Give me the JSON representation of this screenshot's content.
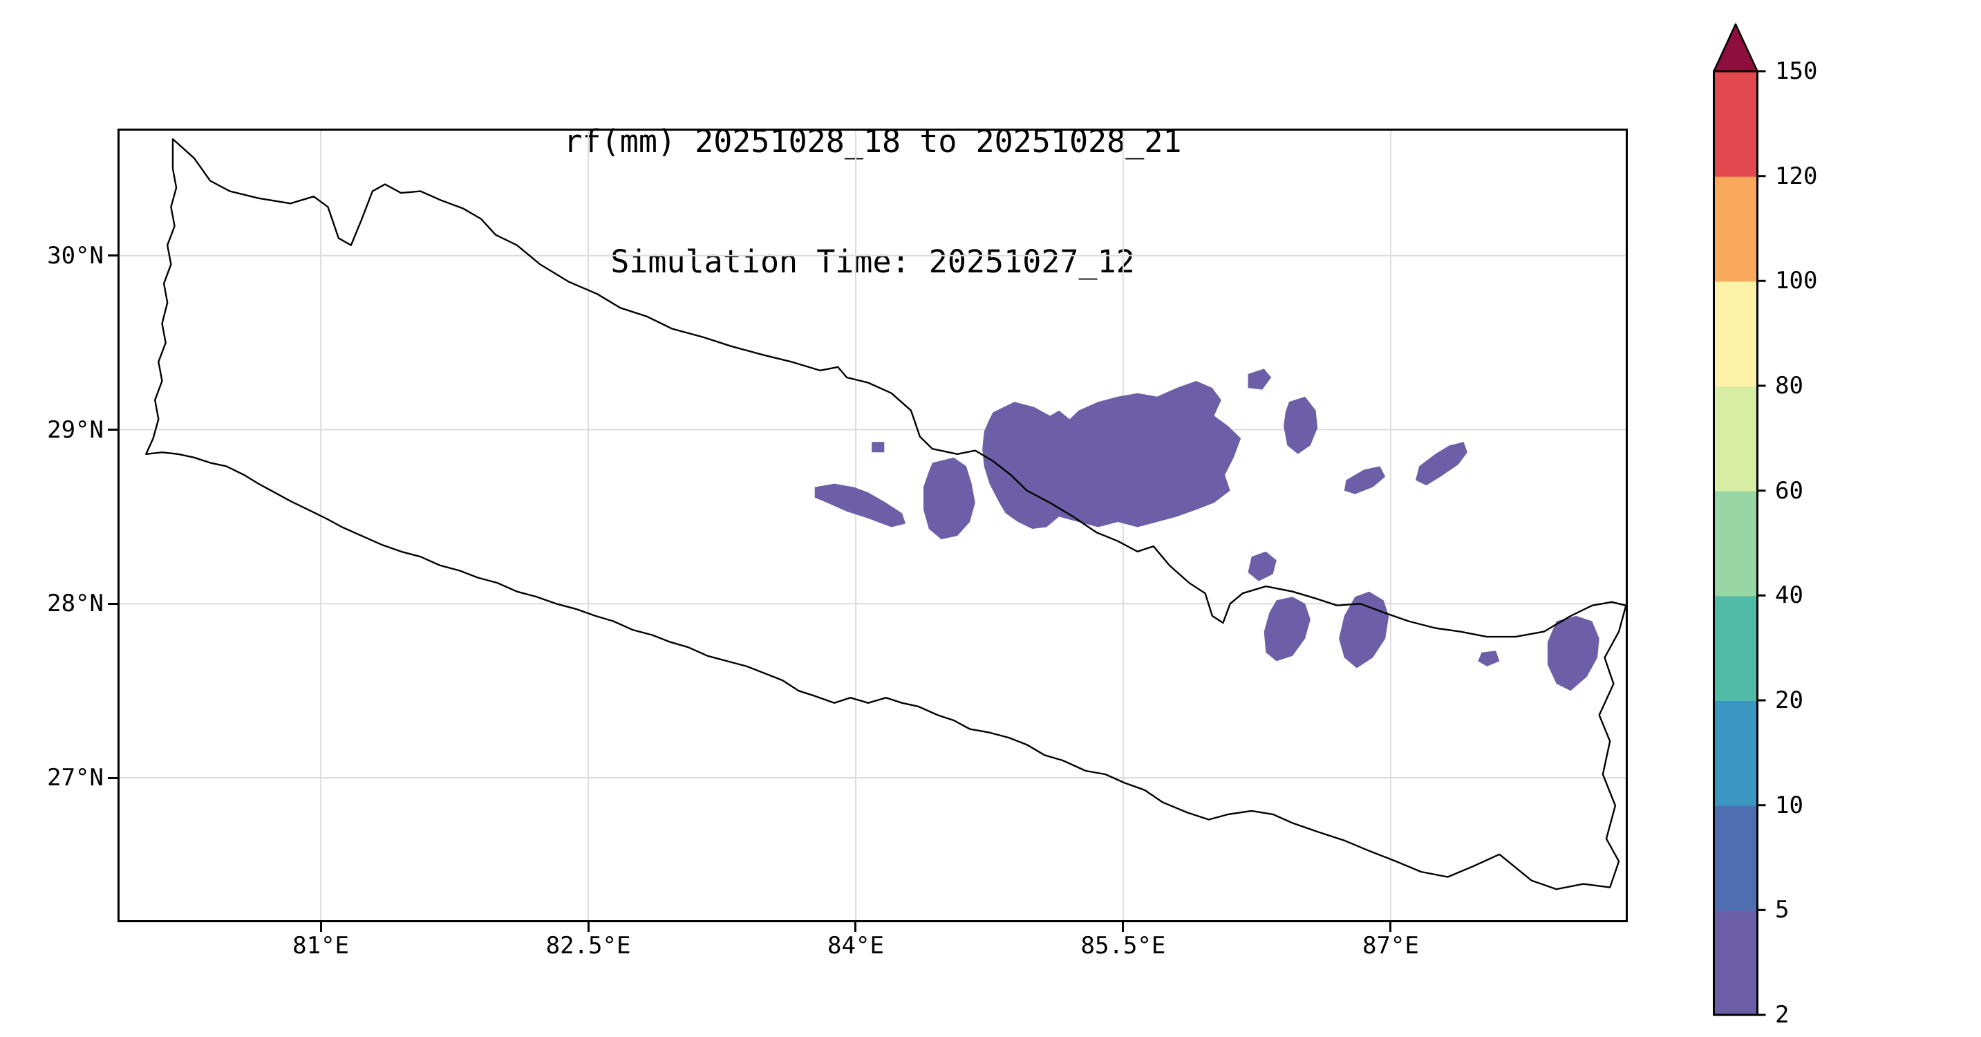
{
  "chart_data": {
    "type": "heatmap",
    "subtype": "filled-contour-precipitation-map",
    "title": "rf(mm) 20251028_18 to 20251028_21",
    "subtitle": "Simulation Time: 20251027_12",
    "region": "Nepal",
    "grid": true,
    "grid_color": "#dcdcdc",
    "x_axis": {
      "range": [
        79.86,
        88.33
      ],
      "ticks": [
        {
          "value": 81.0,
          "label": "81°E"
        },
        {
          "value": 82.5,
          "label": "82.5°E"
        },
        {
          "value": 84.0,
          "label": "84°E"
        },
        {
          "value": 85.5,
          "label": "85.5°E"
        },
        {
          "value": 87.0,
          "label": "87°E"
        }
      ]
    },
    "y_axis": {
      "range": [
        26.17,
        30.73
      ],
      "ticks": [
        {
          "value": 27.0,
          "label": "27°N"
        },
        {
          "value": 28.0,
          "label": "28°N"
        },
        {
          "value": 29.0,
          "label": "29°N"
        },
        {
          "value": 30.0,
          "label": "30°N"
        }
      ]
    },
    "colorbar": {
      "levels": [
        2,
        5,
        10,
        20,
        40,
        60,
        80,
        100,
        120,
        150
      ],
      "tick_labels": [
        "2",
        "5",
        "10",
        "20",
        "40",
        "60",
        "80",
        "100",
        "120",
        "150"
      ],
      "colors": [
        "#6c5fa7",
        "#4f6db1",
        "#3b97c2",
        "#52bba8",
        "#98d7a4",
        "#d7eda3",
        "#fdf0a7",
        "#f9a85c",
        "#e1494f"
      ],
      "extend_color": "#8e0f3e",
      "position": "right"
    },
    "map_outline": {
      "name": "nepal-border",
      "stroke": "#000000",
      "points": [
        [
          80.17,
          30.67
        ],
        [
          80.29,
          30.56
        ],
        [
          80.38,
          30.43
        ],
        [
          80.49,
          30.37
        ],
        [
          80.65,
          30.33
        ],
        [
          80.83,
          30.3
        ],
        [
          80.96,
          30.34
        ],
        [
          81.04,
          30.28
        ],
        [
          81.1,
          30.1
        ],
        [
          81.17,
          30.06
        ],
        [
          81.23,
          30.21
        ],
        [
          81.29,
          30.37
        ],
        [
          81.36,
          30.41
        ],
        [
          81.45,
          30.36
        ],
        [
          81.56,
          30.37
        ],
        [
          81.67,
          30.32
        ],
        [
          81.8,
          30.27
        ],
        [
          81.9,
          30.21
        ],
        [
          81.98,
          30.12
        ],
        [
          82.1,
          30.06
        ],
        [
          82.23,
          29.95
        ],
        [
          82.39,
          29.85
        ],
        [
          82.55,
          29.78
        ],
        [
          82.68,
          29.7
        ],
        [
          82.83,
          29.65
        ],
        [
          82.97,
          29.58
        ],
        [
          83.15,
          29.53
        ],
        [
          83.3,
          29.48
        ],
        [
          83.48,
          29.43
        ],
        [
          83.64,
          29.39
        ],
        [
          83.8,
          29.34
        ],
        [
          83.9,
          29.36
        ],
        [
          83.95,
          29.3
        ],
        [
          84.07,
          29.27
        ],
        [
          84.2,
          29.21
        ],
        [
          84.31,
          29.11
        ],
        [
          84.36,
          28.96
        ],
        [
          84.43,
          28.89
        ],
        [
          84.57,
          28.86
        ],
        [
          84.67,
          28.88
        ],
        [
          84.77,
          28.82
        ],
        [
          84.87,
          28.74
        ],
        [
          84.96,
          28.65
        ],
        [
          85.09,
          28.58
        ],
        [
          85.22,
          28.5
        ],
        [
          85.35,
          28.41
        ],
        [
          85.47,
          28.36
        ],
        [
          85.58,
          28.3
        ],
        [
          85.67,
          28.33
        ],
        [
          85.76,
          28.22
        ],
        [
          85.87,
          28.12
        ],
        [
          85.96,
          28.06
        ],
        [
          86.0,
          27.93
        ],
        [
          86.06,
          27.89
        ],
        [
          86.1,
          28.0
        ],
        [
          86.17,
          28.06
        ],
        [
          86.3,
          28.1
        ],
        [
          86.45,
          28.07
        ],
        [
          86.58,
          28.03
        ],
        [
          86.7,
          27.99
        ],
        [
          86.83,
          28.0
        ],
        [
          86.96,
          27.95
        ],
        [
          87.1,
          27.9
        ],
        [
          87.25,
          27.86
        ],
        [
          87.39,
          27.84
        ],
        [
          87.54,
          27.81
        ],
        [
          87.7,
          27.81
        ],
        [
          87.86,
          27.84
        ],
        [
          88.01,
          27.93
        ],
        [
          88.13,
          27.99
        ],
        [
          88.24,
          28.01
        ],
        [
          88.32,
          27.99
        ],
        [
          88.28,
          27.84
        ],
        [
          88.2,
          27.69
        ],
        [
          88.25,
          27.54
        ],
        [
          88.17,
          27.36
        ],
        [
          88.23,
          27.21
        ],
        [
          88.19,
          27.02
        ],
        [
          88.26,
          26.84
        ],
        [
          88.21,
          26.65
        ],
        [
          88.28,
          26.52
        ],
        [
          88.23,
          26.37
        ],
        [
          88.08,
          26.39
        ],
        [
          87.93,
          26.36
        ],
        [
          87.79,
          26.41
        ],
        [
          87.61,
          26.56
        ],
        [
          87.46,
          26.49
        ],
        [
          87.32,
          26.43
        ],
        [
          87.17,
          26.46
        ],
        [
          87.03,
          26.52
        ],
        [
          86.88,
          26.58
        ],
        [
          86.74,
          26.64
        ],
        [
          86.59,
          26.69
        ],
        [
          86.45,
          26.74
        ],
        [
          86.34,
          26.79
        ],
        [
          86.22,
          26.81
        ],
        [
          86.09,
          26.79
        ],
        [
          85.98,
          26.76
        ],
        [
          85.86,
          26.8
        ],
        [
          85.72,
          26.86
        ],
        [
          85.62,
          26.93
        ],
        [
          85.51,
          26.97
        ],
        [
          85.4,
          27.02
        ],
        [
          85.29,
          27.04
        ],
        [
          85.16,
          27.1
        ],
        [
          85.06,
          27.13
        ],
        [
          84.96,
          27.19
        ],
        [
          84.86,
          27.23
        ],
        [
          84.75,
          27.26
        ],
        [
          84.64,
          27.28
        ],
        [
          84.55,
          27.33
        ],
        [
          84.46,
          27.36
        ],
        [
          84.35,
          27.41
        ],
        [
          84.26,
          27.43
        ],
        [
          84.17,
          27.46
        ],
        [
          84.07,
          27.43
        ],
        [
          83.97,
          27.46
        ],
        [
          83.88,
          27.43
        ],
        [
          83.77,
          27.47
        ],
        [
          83.68,
          27.5
        ],
        [
          83.59,
          27.56
        ],
        [
          83.49,
          27.6
        ],
        [
          83.39,
          27.64
        ],
        [
          83.28,
          27.67
        ],
        [
          83.17,
          27.7
        ],
        [
          83.06,
          27.75
        ],
        [
          82.96,
          27.78
        ],
        [
          82.86,
          27.82
        ],
        [
          82.75,
          27.85
        ],
        [
          82.64,
          27.9
        ],
        [
          82.54,
          27.93
        ],
        [
          82.43,
          27.97
        ],
        [
          82.32,
          28.0
        ],
        [
          82.21,
          28.04
        ],
        [
          82.1,
          28.07
        ],
        [
          81.99,
          28.12
        ],
        [
          81.88,
          28.15
        ],
        [
          81.78,
          28.19
        ],
        [
          81.67,
          28.22
        ],
        [
          81.56,
          28.27
        ],
        [
          81.45,
          28.3
        ],
        [
          81.34,
          28.34
        ],
        [
          81.23,
          28.39
        ],
        [
          81.12,
          28.44
        ],
        [
          81.03,
          28.49
        ],
        [
          80.93,
          28.54
        ],
        [
          80.83,
          28.59
        ],
        [
          80.74,
          28.64
        ],
        [
          80.65,
          28.69
        ],
        [
          80.57,
          28.74
        ],
        [
          80.47,
          28.79
        ],
        [
          80.38,
          28.81
        ],
        [
          80.29,
          28.84
        ],
        [
          80.2,
          28.86
        ],
        [
          80.11,
          28.87
        ],
        [
          80.02,
          28.86
        ],
        [
          80.06,
          28.95
        ],
        [
          80.09,
          29.06
        ],
        [
          80.07,
          29.17
        ],
        [
          80.11,
          29.28
        ],
        [
          80.09,
          29.39
        ],
        [
          80.13,
          29.5
        ],
        [
          80.11,
          29.61
        ],
        [
          80.14,
          29.73
        ],
        [
          80.12,
          29.84
        ],
        [
          80.16,
          29.95
        ],
        [
          80.14,
          30.06
        ],
        [
          80.18,
          30.17
        ],
        [
          80.16,
          30.28
        ],
        [
          80.19,
          30.39
        ],
        [
          80.17,
          30.5
        ]
      ]
    },
    "rain_patches": {
      "value_range": "2-5 mm",
      "fill": "#6c5fa7",
      "polygons": [
        [
          [
            83.77,
            28.67
          ],
          [
            83.88,
            28.69
          ],
          [
            83.99,
            28.67
          ],
          [
            84.07,
            28.64
          ],
          [
            84.17,
            28.58
          ],
          [
            84.26,
            28.52
          ],
          [
            84.28,
            28.46
          ],
          [
            84.2,
            28.44
          ],
          [
            84.07,
            28.49
          ],
          [
            83.95,
            28.53
          ],
          [
            83.84,
            28.58
          ],
          [
            83.77,
            28.61
          ]
        ],
        [
          [
            84.09,
            28.93
          ],
          [
            84.16,
            28.93
          ],
          [
            84.16,
            28.87
          ],
          [
            84.09,
            28.87
          ]
        ],
        [
          [
            84.43,
            28.81
          ],
          [
            84.55,
            28.84
          ],
          [
            84.62,
            28.79
          ],
          [
            84.65,
            28.69
          ],
          [
            84.67,
            28.58
          ],
          [
            84.64,
            28.47
          ],
          [
            84.57,
            28.39
          ],
          [
            84.48,
            28.37
          ],
          [
            84.41,
            28.43
          ],
          [
            84.38,
            28.54
          ],
          [
            84.38,
            28.67
          ],
          [
            84.41,
            28.76
          ]
        ],
        [
          [
            84.77,
            29.1
          ],
          [
            84.89,
            29.16
          ],
          [
            85.0,
            29.13
          ],
          [
            85.09,
            29.08
          ],
          [
            85.14,
            29.11
          ],
          [
            85.2,
            29.06
          ],
          [
            85.25,
            29.11
          ],
          [
            85.36,
            29.16
          ],
          [
            85.47,
            29.19
          ],
          [
            85.58,
            29.21
          ],
          [
            85.69,
            29.19
          ],
          [
            85.8,
            29.24
          ],
          [
            85.91,
            29.28
          ],
          [
            86.0,
            29.24
          ],
          [
            86.05,
            29.17
          ],
          [
            86.01,
            29.08
          ],
          [
            86.09,
            29.02
          ],
          [
            86.16,
            28.95
          ],
          [
            86.12,
            28.84
          ],
          [
            86.07,
            28.74
          ],
          [
            86.1,
            28.65
          ],
          [
            86.01,
            28.58
          ],
          [
            85.91,
            28.54
          ],
          [
            85.8,
            28.5
          ],
          [
            85.69,
            28.47
          ],
          [
            85.58,
            28.44
          ],
          [
            85.47,
            28.47
          ],
          [
            85.36,
            28.44
          ],
          [
            85.25,
            28.47
          ],
          [
            85.14,
            28.5
          ],
          [
            85.07,
            28.44
          ],
          [
            84.99,
            28.43
          ],
          [
            84.91,
            28.47
          ],
          [
            84.84,
            28.52
          ],
          [
            84.8,
            28.59
          ],
          [
            84.75,
            28.69
          ],
          [
            84.72,
            28.79
          ],
          [
            84.71,
            28.89
          ],
          [
            84.72,
            28.99
          ],
          [
            84.75,
            29.06
          ]
        ],
        [
          [
            86.2,
            29.32
          ],
          [
            86.29,
            29.35
          ],
          [
            86.33,
            29.3
          ],
          [
            86.28,
            29.23
          ],
          [
            86.2,
            29.24
          ]
        ],
        [
          [
            86.43,
            29.16
          ],
          [
            86.52,
            29.19
          ],
          [
            86.58,
            29.11
          ],
          [
            86.59,
            29.01
          ],
          [
            86.55,
            28.91
          ],
          [
            86.48,
            28.86
          ],
          [
            86.42,
            28.91
          ],
          [
            86.4,
            29.02
          ],
          [
            86.41,
            29.1
          ]
        ],
        [
          [
            86.75,
            28.71
          ],
          [
            86.85,
            28.77
          ],
          [
            86.94,
            28.79
          ],
          [
            86.97,
            28.73
          ],
          [
            86.9,
            28.67
          ],
          [
            86.8,
            28.63
          ],
          [
            86.74,
            28.65
          ]
        ],
        [
          [
            87.16,
            28.79
          ],
          [
            87.25,
            28.86
          ],
          [
            87.33,
            28.91
          ],
          [
            87.41,
            28.93
          ],
          [
            87.43,
            28.87
          ],
          [
            87.38,
            28.8
          ],
          [
            87.28,
            28.73
          ],
          [
            87.2,
            28.68
          ],
          [
            87.14,
            28.71
          ]
        ],
        [
          [
            86.22,
            28.27
          ],
          [
            86.3,
            28.3
          ],
          [
            86.36,
            28.25
          ],
          [
            86.34,
            28.17
          ],
          [
            86.26,
            28.13
          ],
          [
            86.2,
            28.18
          ]
        ],
        [
          [
            86.36,
            28.02
          ],
          [
            86.45,
            28.04
          ],
          [
            86.52,
            28.0
          ],
          [
            86.55,
            27.91
          ],
          [
            86.52,
            27.8
          ],
          [
            86.45,
            27.7
          ],
          [
            86.36,
            27.67
          ],
          [
            86.3,
            27.72
          ],
          [
            86.29,
            27.84
          ],
          [
            86.32,
            27.95
          ]
        ],
        [
          [
            86.8,
            28.04
          ],
          [
            86.88,
            28.07
          ],
          [
            86.96,
            28.02
          ],
          [
            86.99,
            27.93
          ],
          [
            86.97,
            27.8
          ],
          [
            86.9,
            27.69
          ],
          [
            86.81,
            27.63
          ],
          [
            86.74,
            27.69
          ],
          [
            86.71,
            27.8
          ],
          [
            86.74,
            27.93
          ]
        ],
        [
          [
            87.51,
            27.72
          ],
          [
            87.59,
            27.73
          ],
          [
            87.61,
            27.67
          ],
          [
            87.54,
            27.64
          ],
          [
            87.49,
            27.67
          ]
        ],
        [
          [
            87.93,
            27.9
          ],
          [
            88.04,
            27.93
          ],
          [
            88.13,
            27.9
          ],
          [
            88.17,
            27.8
          ],
          [
            88.16,
            27.69
          ],
          [
            88.1,
            27.58
          ],
          [
            88.01,
            27.5
          ],
          [
            87.93,
            27.54
          ],
          [
            87.88,
            27.65
          ],
          [
            87.88,
            27.78
          ]
        ]
      ]
    }
  }
}
